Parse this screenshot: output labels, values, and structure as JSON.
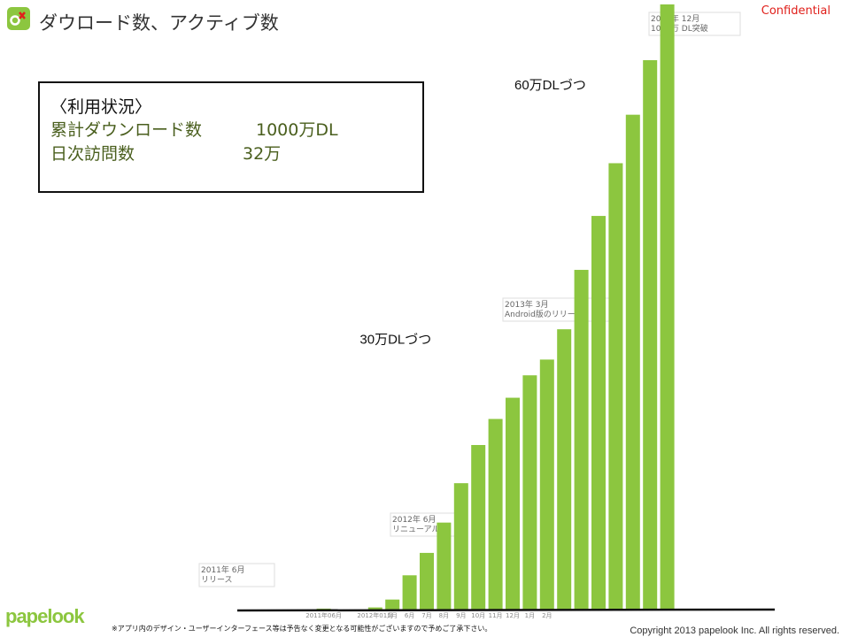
{
  "header": {
    "title": "ダウロード数、アクティブ数",
    "confidential": "Confidential",
    "logo_icon": "papelook-app-icon"
  },
  "usage_box": {
    "heading": "〈利用状況〉",
    "rows": [
      {
        "label": "累計ダウンロード数",
        "value": "1000万DL"
      },
      {
        "label": "日次訪問数",
        "value": "32万"
      }
    ]
  },
  "footer": {
    "brand": "papelook",
    "disclaimer": "※アプリ内のデザイン・ユーザーインターフェース等は予告なく変更となる可能性がございますので予めご了承下さい。",
    "copyright": "Copyright 2013 papelook Inc. All rights reserved."
  },
  "chart_data": {
    "type": "bar",
    "bar_color": "#8cc63f",
    "ylim": [
      0,
      1000
    ],
    "grid": false,
    "legend": "none",
    "values": [
      0,
      0,
      0,
      0,
      3,
      0,
      0,
      5,
      18,
      58,
      95,
      145,
      210,
      273,
      316,
      351,
      388,
      414,
      464,
      562,
      651,
      738,
      818,
      908,
      1000
    ],
    "tick_labels": [
      {
        "index": 4,
        "text": "2011年06月"
      },
      {
        "index": 7,
        "text": "2012年01月"
      },
      {
        "index": 8,
        "text": "5月"
      },
      {
        "index": 9,
        "text": "6月"
      },
      {
        "index": 10,
        "text": "7月"
      },
      {
        "index": 11,
        "text": "8月"
      },
      {
        "index": 12,
        "text": "9月"
      },
      {
        "index": 13,
        "text": "10月"
      },
      {
        "index": 14,
        "text": "11月"
      },
      {
        "index": 15,
        "text": "12月"
      },
      {
        "index": 16,
        "text": "1月"
      },
      {
        "index": 17,
        "text": "2月"
      }
    ],
    "notes": [
      {
        "index": 4,
        "lines": [
          "2011年 6月",
          "リリース"
        ]
      },
      {
        "index": 7,
        "lines": [
          "2012年 6月",
          "リニューアル"
        ]
      },
      {
        "index": 17,
        "lines": [
          "2013年 3月",
          "Android版のリリース"
        ]
      },
      {
        "index": 22,
        "lines": [
          "2013年 12月",
          "1000万 DL突破"
        ]
      }
    ],
    "annotations": [
      {
        "text": "30万DLづつ",
        "index": 11,
        "value": 440
      },
      {
        "text": "60万DLづつ",
        "index": 20,
        "value": 860
      }
    ]
  }
}
